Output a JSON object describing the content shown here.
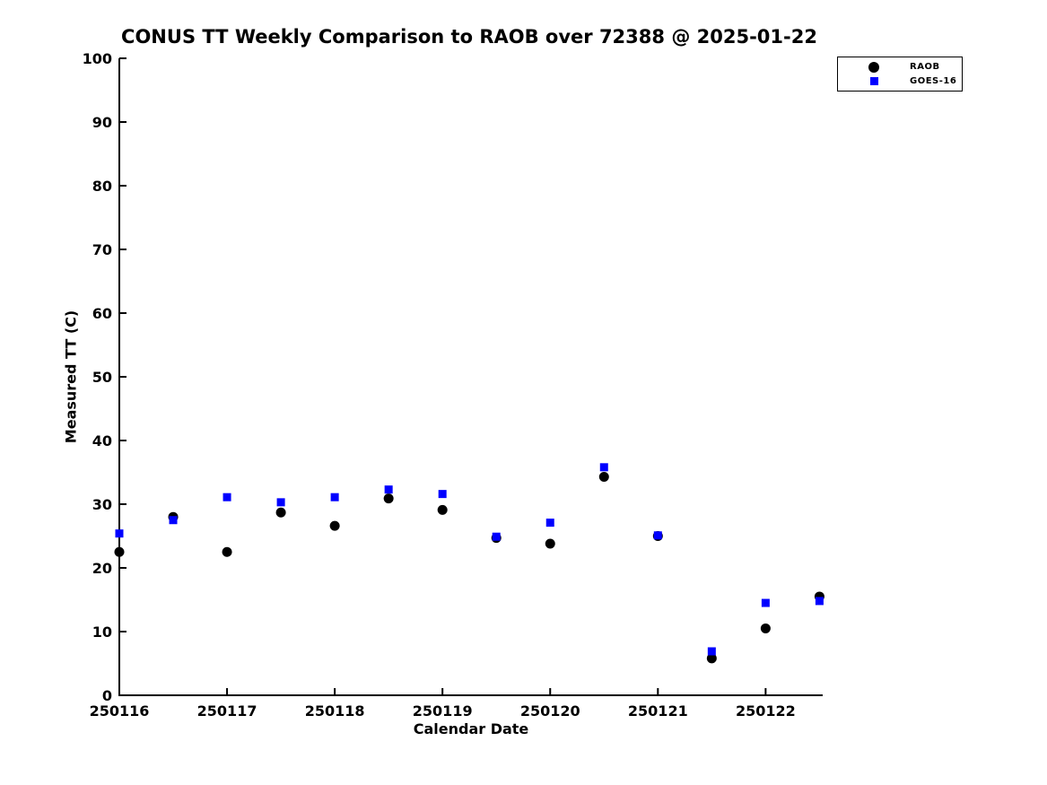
{
  "chart_data": {
    "type": "scatter",
    "title": "CONUS TT Weekly Comparison to RAOB over 72388 @ 2025-01-22",
    "xlabel": "Calendar Date",
    "ylabel": "Measured TT (C)",
    "xlim": [
      250116,
      250122.53
    ],
    "ylim": [
      0,
      100
    ],
    "grid": false,
    "legend_position": "upper-right-outside",
    "xticks": [
      {
        "v": 250116,
        "label": "250116"
      },
      {
        "v": 250117,
        "label": "250117"
      },
      {
        "v": 250118,
        "label": "250118"
      },
      {
        "v": 250119,
        "label": "250119"
      },
      {
        "v": 250120,
        "label": "250120"
      },
      {
        "v": 250121,
        "label": "250121"
      },
      {
        "v": 250122,
        "label": "250122"
      }
    ],
    "yticks": [
      {
        "v": 0,
        "label": "0"
      },
      {
        "v": 10,
        "label": "10"
      },
      {
        "v": 20,
        "label": "20"
      },
      {
        "v": 30,
        "label": "30"
      },
      {
        "v": 40,
        "label": "40"
      },
      {
        "v": 50,
        "label": "50"
      },
      {
        "v": 60,
        "label": "60"
      },
      {
        "v": 70,
        "label": "70"
      },
      {
        "v": 80,
        "label": "80"
      },
      {
        "v": 90,
        "label": "90"
      },
      {
        "v": 100,
        "label": "100"
      }
    ],
    "x": [
      250116,
      250116.5,
      250117,
      250117.5,
      250118,
      250118.5,
      250119,
      250119.5,
      250120,
      250120.5,
      250121,
      250121.5,
      250122,
      250122.5
    ],
    "series": [
      {
        "name": "RAOB",
        "marker": "circle",
        "color": "#000000",
        "values": [
          22.5,
          28.0,
          22.5,
          28.7,
          26.6,
          30.9,
          29.1,
          24.7,
          23.8,
          34.3,
          25.0,
          5.8,
          10.5,
          15.5
        ]
      },
      {
        "name": "GOES-16",
        "marker": "square",
        "color": "#0000ff",
        "values": [
          25.4,
          27.5,
          31.1,
          30.3,
          31.1,
          32.3,
          31.6,
          24.9,
          27.1,
          35.8,
          25.1,
          6.9,
          14.5,
          14.8
        ]
      }
    ]
  }
}
